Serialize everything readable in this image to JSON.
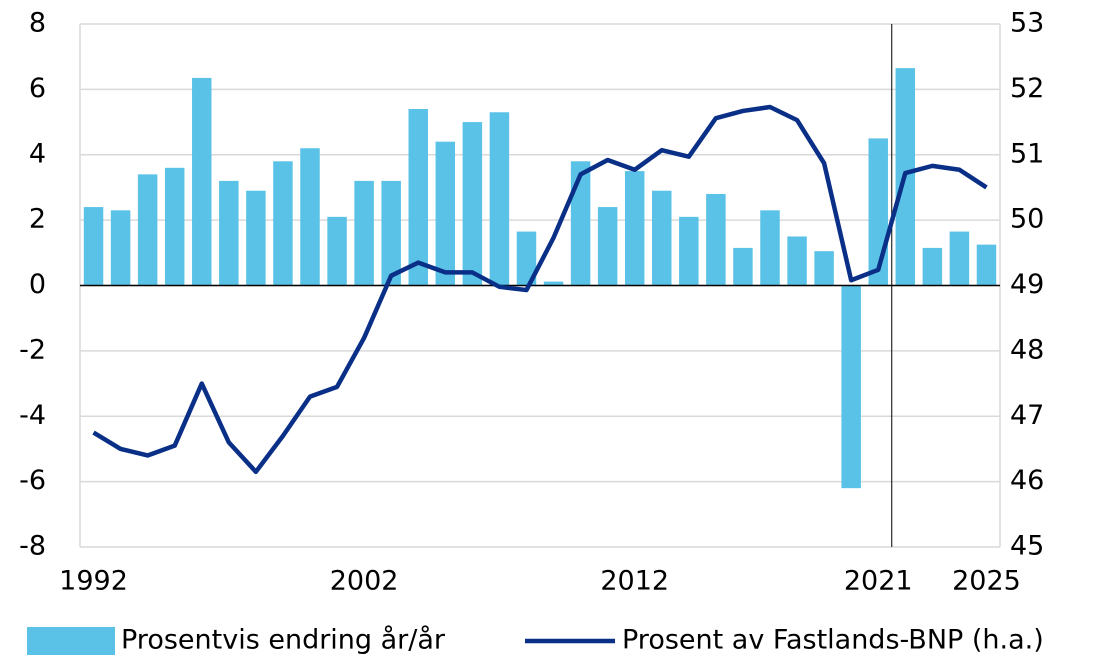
{
  "chart_data": {
    "type": "combo",
    "categories": [
      "1992",
      null,
      null,
      null,
      null,
      null,
      null,
      null,
      null,
      null,
      "2002",
      null,
      null,
      null,
      null,
      null,
      null,
      null,
      null,
      null,
      "2012",
      null,
      null,
      null,
      null,
      null,
      null,
      null,
      null,
      "2021",
      null,
      null,
      null,
      "2025"
    ],
    "series": [
      {
        "name": "Prosentvis endring år/år",
        "type": "bar",
        "color": "#5bc2e7",
        "values": [
          2.4,
          2.3,
          3.4,
          3.6,
          6.35,
          3.2,
          2.9,
          3.8,
          4.2,
          2.1,
          3.2,
          3.2,
          5.4,
          4.4,
          5.0,
          5.3,
          1.65,
          0.12,
          3.8,
          2.4,
          3.5,
          2.9,
          2.1,
          2.8,
          1.15,
          2.3,
          1.5,
          1.05,
          -6.2,
          4.5,
          6.65,
          1.15,
          1.65,
          1.25
        ]
      },
      {
        "name": "Prosent av Fastlands-BNP (h.a.)",
        "type": "line",
        "axis": "y2",
        "color": "#0a2f87",
        "values": [
          46.75,
          46.5,
          46.4,
          46.55,
          47.5,
          46.6,
          46.15,
          46.7,
          47.3,
          47.45,
          48.2,
          49.15,
          49.35,
          49.2,
          49.2,
          48.98,
          48.93,
          49.73,
          50.7,
          50.92,
          50.77,
          51.07,
          50.97,
          51.56,
          51.67,
          51.73,
          51.53,
          50.87,
          49.08,
          49.24,
          50.72,
          50.83,
          50.77,
          50.5
        ]
      }
    ],
    "ylim": [
      -8,
      8
    ],
    "yticks": [
      -8,
      -6,
      -4,
      -2,
      0,
      2,
      4,
      6,
      8
    ],
    "y2lim": [
      45,
      53
    ],
    "y2ticks": [
      45,
      46,
      47,
      48,
      49,
      50,
      51,
      52,
      53
    ],
    "grid": true,
    "legend": "bottom"
  }
}
